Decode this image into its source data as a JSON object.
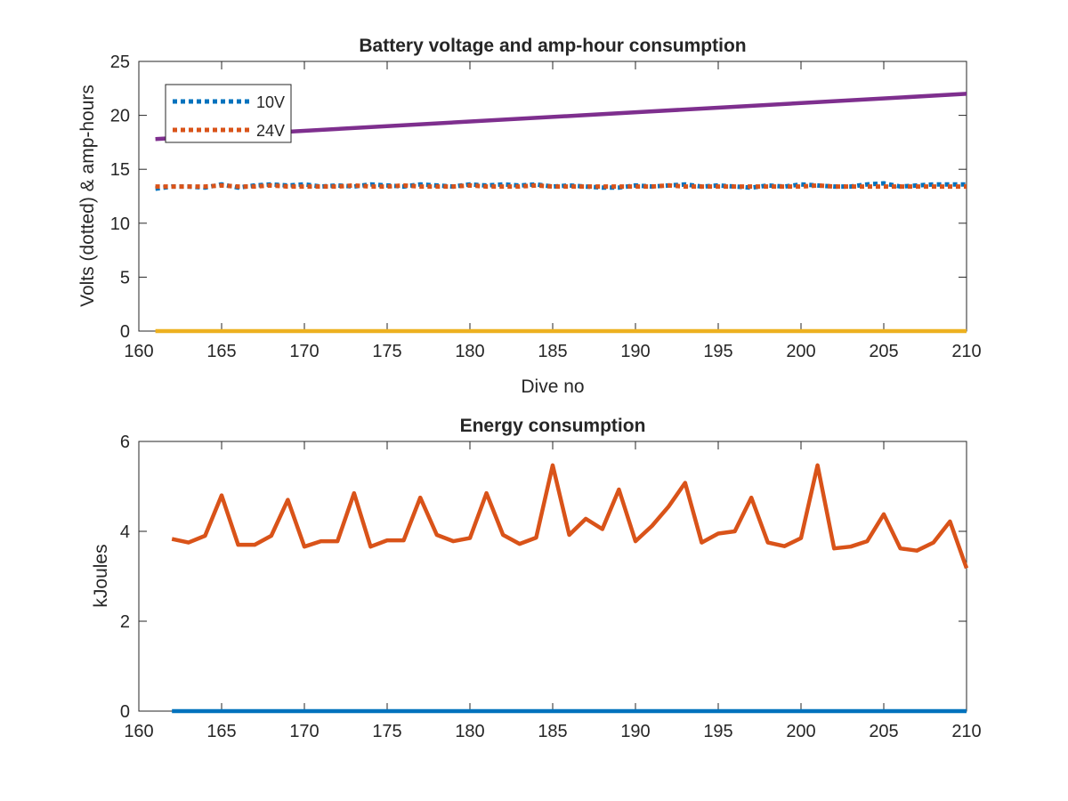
{
  "chart_data": [
    {
      "type": "line",
      "title": "Battery voltage and amp-hour consumption",
      "xlabel": "Dive no",
      "ylabel": "Volts (dotted) & amp-hours",
      "xlim": [
        160,
        210
      ],
      "ylim": [
        0,
        25
      ],
      "xticks": [
        "160",
        "165",
        "170",
        "175",
        "180",
        "185",
        "190",
        "195",
        "200",
        "205",
        "210"
      ],
      "yticks": [
        "0",
        "5",
        "10",
        "15",
        "20",
        "25"
      ],
      "grid": false,
      "legend_position": "top-left",
      "series": [
        {
          "name": "10V",
          "style": "dotted",
          "color": "#0072BD",
          "x": [
            161,
            162,
            163,
            164,
            165,
            166,
            167,
            168,
            169,
            170,
            171,
            172,
            173,
            174,
            175,
            176,
            177,
            178,
            179,
            180,
            181,
            182,
            183,
            184,
            185,
            186,
            187,
            188,
            189,
            190,
            191,
            192,
            193,
            194,
            195,
            196,
            197,
            198,
            199,
            200,
            201,
            202,
            203,
            204,
            205,
            206,
            207,
            208,
            209,
            210
          ],
          "values": [
            13.2,
            13.4,
            13.4,
            13.3,
            13.6,
            13.3,
            13.5,
            13.6,
            13.5,
            13.6,
            13.4,
            13.5,
            13.4,
            13.6,
            13.5,
            13.4,
            13.6,
            13.5,
            13.4,
            13.6,
            13.5,
            13.6,
            13.5,
            13.6,
            13.4,
            13.5,
            13.4,
            13.3,
            13.3,
            13.5,
            13.4,
            13.5,
            13.6,
            13.4,
            13.5,
            13.4,
            13.3,
            13.5,
            13.4,
            13.6,
            13.5,
            13.4,
            13.4,
            13.6,
            13.7,
            13.4,
            13.5,
            13.6,
            13.6,
            13.6
          ]
        },
        {
          "name": "24V",
          "style": "dotted",
          "color": "#D95319",
          "x": [
            161,
            162,
            163,
            164,
            165,
            166,
            167,
            168,
            169,
            170,
            171,
            172,
            173,
            174,
            175,
            176,
            177,
            178,
            179,
            180,
            181,
            182,
            183,
            184,
            185,
            186,
            187,
            188,
            189,
            190,
            191,
            192,
            193,
            194,
            195,
            196,
            197,
            198,
            199,
            200,
            201,
            202,
            203,
            204,
            205,
            206,
            207,
            208,
            209,
            210
          ],
          "values": [
            13.4,
            13.4,
            13.4,
            13.4,
            13.5,
            13.4,
            13.4,
            13.5,
            13.4,
            13.4,
            13.4,
            13.4,
            13.5,
            13.4,
            13.4,
            13.5,
            13.4,
            13.4,
            13.4,
            13.5,
            13.4,
            13.4,
            13.4,
            13.5,
            13.4,
            13.4,
            13.4,
            13.4,
            13.4,
            13.4,
            13.4,
            13.5,
            13.4,
            13.4,
            13.4,
            13.4,
            13.4,
            13.4,
            13.4,
            13.4,
            13.5,
            13.4,
            13.4,
            13.4,
            13.4,
            13.4,
            13.4,
            13.4,
            13.4,
            13.4
          ]
        },
        {
          "style": "solid",
          "color": "#7E2F8E",
          "x": [
            161,
            210
          ],
          "values": [
            17.8,
            22.0
          ]
        },
        {
          "style": "solid",
          "color": "#EDB120",
          "x": [
            161,
            210
          ],
          "values": [
            0,
            0
          ]
        }
      ]
    },
    {
      "type": "line",
      "title": "Energy consumption",
      "xlabel": "",
      "ylabel": "kJoules",
      "xlim": [
        160,
        210
      ],
      "ylim": [
        0,
        6
      ],
      "xticks": [
        "160",
        "165",
        "170",
        "175",
        "180",
        "185",
        "190",
        "195",
        "200",
        "205",
        "210"
      ],
      "yticks": [
        "0",
        "2",
        "4",
        "6"
      ],
      "grid": false,
      "series": [
        {
          "style": "solid",
          "color": "#0072BD",
          "x": [
            162,
            210
          ],
          "values": [
            0,
            0
          ]
        },
        {
          "style": "solid",
          "color": "#D95319",
          "x": [
            162,
            163,
            164,
            165,
            166,
            167,
            168,
            169,
            170,
            171,
            172,
            173,
            174,
            175,
            176,
            177,
            178,
            179,
            180,
            181,
            182,
            183,
            184,
            185,
            186,
            187,
            188,
            189,
            190,
            191,
            192,
            193,
            194,
            195,
            196,
            197,
            198,
            199,
            200,
            201,
            202,
            203,
            204,
            205,
            206,
            207,
            208,
            209,
            210
          ],
          "values": [
            3.83,
            3.75,
            3.9,
            4.8,
            3.7,
            3.7,
            3.9,
            4.7,
            3.66,
            3.78,
            3.78,
            4.85,
            3.66,
            3.8,
            3.8,
            4.75,
            3.92,
            3.78,
            3.85,
            4.85,
            3.92,
            3.72,
            3.86,
            5.47,
            3.92,
            4.28,
            4.05,
            4.93,
            3.78,
            4.12,
            4.55,
            5.08,
            3.75,
            3.95,
            4.0,
            4.75,
            3.75,
            3.67,
            3.85,
            5.47,
            3.62,
            3.66,
            3.78,
            4.38,
            3.62,
            3.57,
            3.75,
            4.22,
            3.18
          ]
        }
      ]
    }
  ]
}
